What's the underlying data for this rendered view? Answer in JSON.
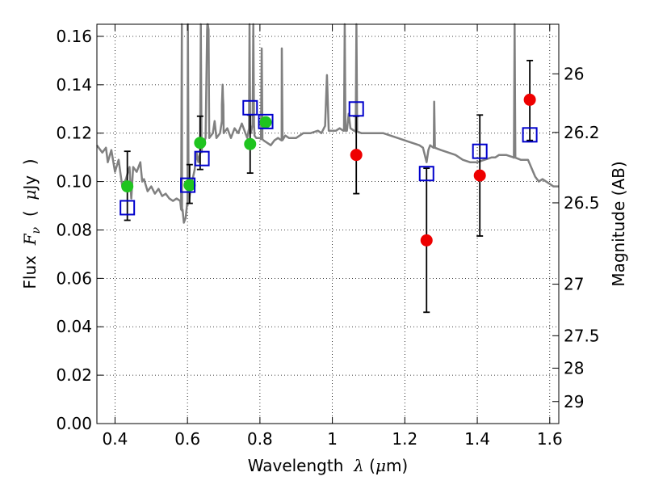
{
  "chart_data": {
    "type": "scatter",
    "xlabel": {
      "prefix": "Wavelength  ",
      "symbol": "λ",
      "unit_open": " (",
      "unit_symbol": "μ",
      "unit_rest": "m)"
    },
    "ylabel": {
      "prefix": "Flux  ",
      "symbol": "F",
      "sub": "ν",
      "unit_open": "  (  ",
      "unit_symbol": "μ",
      "unit_rest": "Jy  )"
    },
    "y2label": "Magnitude (AB)",
    "xlim": [
      0.35,
      1.625
    ],
    "ylim": [
      0.0,
      0.165
    ],
    "x_ticks": [
      0.4,
      0.6,
      0.8,
      1.0,
      1.2,
      1.4,
      1.6
    ],
    "x_tick_labels": [
      "0.4",
      "0.6",
      "0.8",
      "1",
      "1.2",
      "1.4",
      "1.6"
    ],
    "y_ticks": [
      0.0,
      0.02,
      0.04,
      0.06,
      0.08,
      0.1,
      0.12,
      0.14,
      0.16
    ],
    "y_tick_labels": [
      "0.00",
      "0.02",
      "0.04",
      "0.06",
      "0.08",
      "0.10",
      "0.12",
      "0.14",
      "0.16"
    ],
    "y2_ticks": [
      {
        "label": "26",
        "flux": 0.1445
      },
      {
        "label": "26.2",
        "flux": 0.1203
      },
      {
        "label": "26.5",
        "flux": 0.0912
      },
      {
        "label": "27",
        "flux": 0.0576
      },
      {
        "label": "27.5",
        "flux": 0.0363
      },
      {
        "label": "28",
        "flux": 0.0229
      },
      {
        "label": "29",
        "flux": 0.0091
      }
    ],
    "grid": true,
    "colors": {
      "model": "#808080",
      "green": "#1fc41f",
      "red": "#ee0000",
      "square": "#0000cc",
      "errorbar": "#000000"
    },
    "model_spectrum": [
      [
        0.35,
        0.115
      ],
      [
        0.365,
        0.112
      ],
      [
        0.375,
        0.114
      ],
      [
        0.38,
        0.108
      ],
      [
        0.39,
        0.113
      ],
      [
        0.4,
        0.104
      ],
      [
        0.41,
        0.109
      ],
      [
        0.42,
        0.098
      ],
      [
        0.43,
        0.101
      ],
      [
        0.44,
        0.106
      ],
      [
        0.445,
        0.093
      ],
      [
        0.45,
        0.106
      ],
      [
        0.46,
        0.104
      ],
      [
        0.47,
        0.108
      ],
      [
        0.475,
        0.1
      ],
      [
        0.48,
        0.101
      ],
      [
        0.49,
        0.096
      ],
      [
        0.5,
        0.098
      ],
      [
        0.51,
        0.095
      ],
      [
        0.52,
        0.097
      ],
      [
        0.53,
        0.094
      ],
      [
        0.54,
        0.095
      ],
      [
        0.55,
        0.093
      ],
      [
        0.56,
        0.092
      ],
      [
        0.57,
        0.093
      ],
      [
        0.58,
        0.092
      ],
      [
        0.585,
        0.088
      ],
      [
        0.59,
        0.083
      ],
      [
        0.595,
        0.085
      ],
      [
        0.6,
        0.09
      ],
      [
        0.61,
        0.098
      ],
      [
        0.62,
        0.105
      ],
      [
        0.625,
        0.112
      ],
      [
        0.63,
        0.108
      ],
      [
        0.64,
        0.114
      ],
      [
        0.65,
        0.118
      ],
      [
        0.655,
        0.165
      ],
      [
        0.656,
        0.165
      ],
      [
        0.66,
        0.118
      ],
      [
        0.67,
        0.12
      ],
      [
        0.675,
        0.125
      ],
      [
        0.68,
        0.118
      ],
      [
        0.69,
        0.12
      ],
      [
        0.695,
        0.125
      ],
      [
        0.698,
        0.135
      ],
      [
        0.7,
        0.12
      ],
      [
        0.71,
        0.122
      ],
      [
        0.72,
        0.118
      ],
      [
        0.73,
        0.122
      ],
      [
        0.74,
        0.12
      ],
      [
        0.75,
        0.124
      ],
      [
        0.76,
        0.12
      ],
      [
        0.765,
        0.118
      ],
      [
        0.77,
        0.122
      ],
      [
        0.775,
        0.12
      ],
      [
        0.78,
        0.126
      ],
      [
        0.785,
        0.119
      ],
      [
        0.79,
        0.118
      ],
      [
        0.8,
        0.118
      ],
      [
        0.81,
        0.117
      ],
      [
        0.82,
        0.116
      ],
      [
        0.83,
        0.115
      ],
      [
        0.84,
        0.117
      ],
      [
        0.85,
        0.118
      ],
      [
        0.86,
        0.117
      ],
      [
        0.87,
        0.119
      ],
      [
        0.88,
        0.118
      ],
      [
        0.9,
        0.118
      ],
      [
        0.92,
        0.12
      ],
      [
        0.94,
        0.12
      ],
      [
        0.96,
        0.121
      ],
      [
        0.97,
        0.12
      ],
      [
        0.98,
        0.123
      ],
      [
        0.985,
        0.144
      ],
      [
        0.99,
        0.121
      ],
      [
        1.0,
        0.121
      ],
      [
        1.01,
        0.121
      ],
      [
        1.02,
        0.122
      ],
      [
        1.03,
        0.121
      ],
      [
        1.04,
        0.121
      ],
      [
        1.045,
        0.128
      ],
      [
        1.05,
        0.122
      ],
      [
        1.06,
        0.121
      ],
      [
        1.08,
        0.12
      ],
      [
        1.1,
        0.12
      ],
      [
        1.12,
        0.12
      ],
      [
        1.14,
        0.12
      ],
      [
        1.16,
        0.119
      ],
      [
        1.18,
        0.118
      ],
      [
        1.2,
        0.117
      ],
      [
        1.22,
        0.116
      ],
      [
        1.24,
        0.115
      ],
      [
        1.25,
        0.114
      ],
      [
        1.26,
        0.108
      ],
      [
        1.265,
        0.113
      ],
      [
        1.27,
        0.115
      ],
      [
        1.28,
        0.114
      ],
      [
        1.3,
        0.113
      ],
      [
        1.32,
        0.112
      ],
      [
        1.34,
        0.111
      ],
      [
        1.35,
        0.11
      ],
      [
        1.36,
        0.109
      ],
      [
        1.38,
        0.108
      ],
      [
        1.4,
        0.108
      ],
      [
        1.42,
        0.109
      ],
      [
        1.44,
        0.11
      ],
      [
        1.45,
        0.11
      ],
      [
        1.46,
        0.111
      ],
      [
        1.48,
        0.111
      ],
      [
        1.5,
        0.11
      ],
      [
        1.52,
        0.109
      ],
      [
        1.54,
        0.109
      ],
      [
        1.56,
        0.102
      ],
      [
        1.57,
        0.1
      ],
      [
        1.58,
        0.101
      ],
      [
        1.6,
        0.099
      ],
      [
        1.61,
        0.098
      ],
      [
        1.625,
        0.098
      ]
    ],
    "model_emission_lines": [
      {
        "x": 0.5845,
        "peak": 0.165
      },
      {
        "x": 0.6013,
        "peak": 0.165
      },
      {
        "x": 0.6368,
        "peak": 0.165
      },
      {
        "x": 0.6562,
        "peak": 0.165
      },
      {
        "x": 0.697,
        "peak": 0.14
      },
      {
        "x": 0.7713,
        "peak": 0.165
      },
      {
        "x": 0.7818,
        "peak": 0.165
      },
      {
        "x": 0.805,
        "peak": 0.155
      },
      {
        "x": 0.8605,
        "peak": 0.155
      },
      {
        "x": 1.034,
        "peak": 0.165
      },
      {
        "x": 1.0665,
        "peak": 0.165
      },
      {
        "x": 1.281,
        "peak": 0.133
      },
      {
        "x": 1.503,
        "peak": 0.165
      }
    ],
    "points_green": [
      {
        "x": 0.434,
        "y": 0.098,
        "yerr": null
      },
      {
        "x": 0.606,
        "y": 0.0985,
        "yerr": [
          0.091,
          0.107
        ]
      },
      {
        "x": 0.635,
        "y": 0.116,
        "yerr": [
          0.105,
          0.127
        ]
      },
      {
        "x": 0.773,
        "y": 0.1155,
        "yerr": [
          0.1035,
          0.1275
        ]
      },
      {
        "x": 0.816,
        "y": 0.1245,
        "yerr": null
      }
    ],
    "points_red": [
      {
        "x": 1.066,
        "y": 0.111,
        "yerr": [
          0.095,
          0.127
        ]
      },
      {
        "x": 1.26,
        "y": 0.0757,
        "yerr": [
          0.046,
          0.1055
        ]
      },
      {
        "x": 1.407,
        "y": 0.1025,
        "yerr": [
          0.0775,
          0.1275
        ]
      },
      {
        "x": 1.545,
        "y": 0.1338,
        "yerr": [
          0.117,
          0.15
        ]
      }
    ],
    "errorbar_extra": [
      {
        "x": 0.434,
        "yerr": [
          0.084,
          0.1125
        ]
      }
    ],
    "points_square": [
      {
        "x": 0.434,
        "y": 0.0892
      },
      {
        "x": 0.601,
        "y": 0.0985
      },
      {
        "x": 0.64,
        "y": 0.1095
      },
      {
        "x": 0.773,
        "y": 0.1305
      },
      {
        "x": 0.816,
        "y": 0.1248
      },
      {
        "x": 1.066,
        "y": 0.13
      },
      {
        "x": 1.26,
        "y": 0.1033
      },
      {
        "x": 1.407,
        "y": 0.1125
      },
      {
        "x": 1.545,
        "y": 0.1193
      }
    ]
  }
}
